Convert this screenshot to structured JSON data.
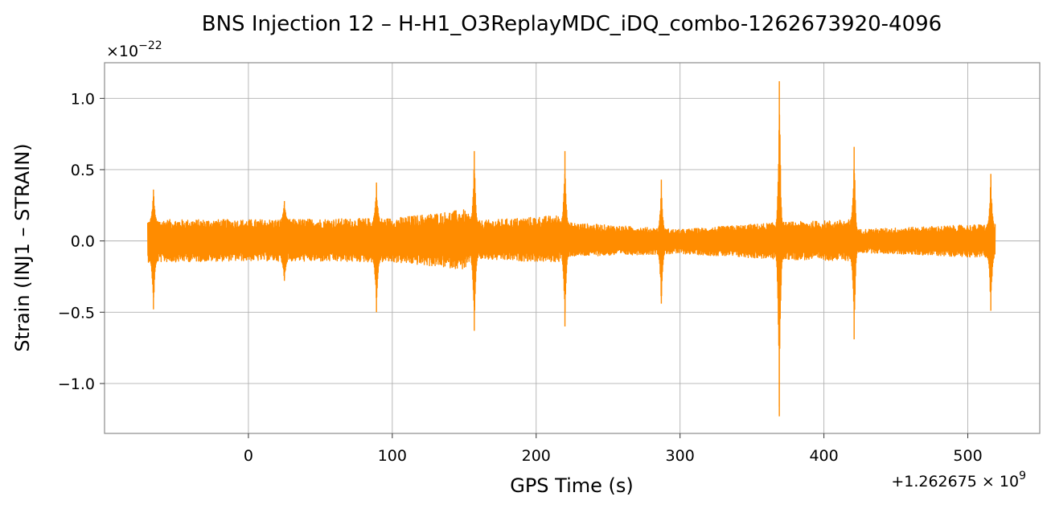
{
  "chart_data": {
    "type": "line",
    "title": "BNS Injection 12 – H-H1_O3ReplayMDC_iDQ_combo-1262673920-4096",
    "xlabel": "GPS Time (s)",
    "ylabel": "Strain (INJ1 – STRAIN)",
    "x_offset_label": "+1.262675 × 10",
    "x_offset_exponent": "9",
    "y_scale_label": "×10",
    "y_scale_exponent": "−22",
    "xlim": [
      -100,
      550
    ],
    "ylim": [
      -1.35,
      1.25
    ],
    "x_ticks": [
      0,
      100,
      200,
      300,
      400,
      500
    ],
    "x_tick_labels": [
      "0",
      "100",
      "200",
      "300",
      "400",
      "500"
    ],
    "y_ticks": [
      -1.0,
      -0.5,
      0.0,
      0.5,
      1.0
    ],
    "y_tick_labels": [
      "−1.0",
      "−0.5",
      "0.0",
      "0.5",
      "1.0"
    ],
    "grid": true,
    "color": "#ff8c00",
    "series": [
      {
        "x_range": [
          -70,
          519
        ],
        "envelope": [
          {
            "x": -70,
            "upper": 0.15,
            "lower": -0.15
          },
          {
            "x": 0,
            "upper": 0.15,
            "lower": -0.14
          },
          {
            "x": 100,
            "upper": 0.16,
            "lower": -0.15
          },
          {
            "x": 150,
            "upper": 0.22,
            "lower": -0.2
          },
          {
            "x": 157,
            "upper": 0.14,
            "lower": -0.13
          },
          {
            "x": 215,
            "upper": 0.18,
            "lower": -0.15
          },
          {
            "x": 221,
            "upper": 0.13,
            "lower": -0.11
          },
          {
            "x": 300,
            "upper": 0.08,
            "lower": -0.09
          },
          {
            "x": 368,
            "upper": 0.13,
            "lower": -0.13
          },
          {
            "x": 420,
            "upper": 0.15,
            "lower": -0.14
          },
          {
            "x": 421,
            "upper": 0.08,
            "lower": -0.08
          },
          {
            "x": 519,
            "upper": 0.12,
            "lower": -0.12
          }
        ],
        "glitches": [
          {
            "x": -66,
            "max": 0.36,
            "min": -0.48
          },
          {
            "x": 25,
            "max": 0.28,
            "min": -0.28
          },
          {
            "x": 89,
            "max": 0.41,
            "min": -0.5
          },
          {
            "x": 157,
            "max": 0.63,
            "min": -0.63
          },
          {
            "x": 220,
            "max": 0.63,
            "min": -0.6
          },
          {
            "x": 287,
            "max": 0.43,
            "min": -0.44
          },
          {
            "x": 369,
            "max": 1.12,
            "min": -1.23
          },
          {
            "x": 421,
            "max": 0.66,
            "min": -0.69
          },
          {
            "x": 516,
            "max": 0.47,
            "min": -0.49
          }
        ]
      }
    ]
  }
}
